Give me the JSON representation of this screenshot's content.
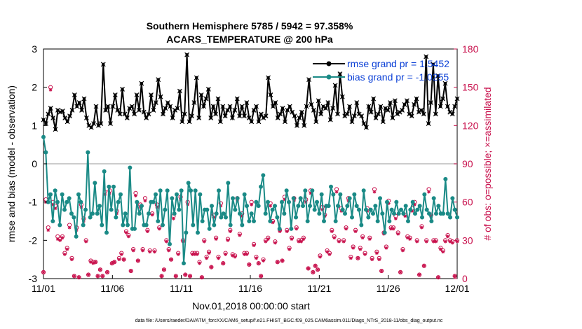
{
  "chart_data": {
    "type": "line",
    "title_line1": "Southern Hemisphere 5785 / 5942 = 97.358%",
    "title_line2": "ACARS_TEMPERATURE @ 200 hPa",
    "xlabel": "Nov.01,2018 00:00:00 start",
    "ylabel_left": "rmse and bias (model - observation)",
    "ylabel_right": "# of obs: o=possible; ×=assimilated",
    "footnote": "data file: /Users/raeder/DAI/ATM_forcXX/CAM6_setup/f.e21.FHIST_BGC.f09_025.CAM6assim.011/Diags_NTrS_2018-11/obs_diag_output.nc",
    "x_range": [
      0,
      30
    ],
    "x_ticks": [
      0,
      5,
      10,
      15,
      20,
      25,
      30
    ],
    "x_tick_labels": [
      "11/01",
      "11/06",
      "11/11",
      "11/16",
      "11/21",
      "11/26",
      "12/01"
    ],
    "y_left_range": [
      -3,
      3
    ],
    "y_left_ticks": [
      "-3",
      "-2",
      "-1",
      "0",
      "1",
      "2",
      "3"
    ],
    "y_right_range": [
      0,
      180
    ],
    "y_right_ticks": [
      "0",
      "30",
      "60",
      "90",
      "120",
      "150",
      "180"
    ],
    "zero_line": 0,
    "colors": {
      "rmse": "#000000",
      "bias": "#1a8a86",
      "obs": "#c8104c",
      "zero_line": "#bbbbbb",
      "legend_text": "#0a3fd6"
    },
    "legend": [
      {
        "label": "rmse grand pr = 1.5452",
        "series": "rmse"
      },
      {
        "label": "bias grand pr = -1.0255",
        "series": "bias"
      }
    ],
    "series": [
      {
        "name": "rmse",
        "values": [
          1.15,
          1.05,
          1.3,
          1.45,
          1.2,
          0.9,
          1.4,
          1.35,
          1.38,
          1.2,
          1.1,
          1.25,
          1.4,
          1.8,
          1.5,
          1.6,
          1.4,
          1.7,
          1.2,
          1.0,
          0.95,
          1.05,
          1.5,
          1.0,
          1.05,
          2.6,
          1.4,
          1.5,
          1.05,
          1.5,
          1.8,
          1.4,
          1.3,
          1.95,
          1.3,
          1.2,
          1.45,
          1.5,
          1.3,
          1.8,
          1.4,
          2.1,
          1.35,
          1.2,
          1.3,
          1.8,
          1.4,
          1.6,
          2.2,
          1.75,
          1.3,
          1.45,
          1.6,
          1.5,
          1.2,
          1.4,
          1.45,
          1.9,
          1.1,
          1.3,
          2.85,
          1.1,
          1.25,
          1.6,
          2.25,
          1.2,
          1.8,
          1.5,
          1.7,
          1.95,
          1.2,
          1.5,
          1.3,
          1.7,
          1.1,
          1.5,
          1.25,
          1.4,
          1.5,
          1.2,
          1.4,
          1.7,
          1.25,
          1.5,
          1.25,
          1.6,
          1.2,
          1.1,
          1.4,
          1.5,
          1.1,
          1.3,
          1.2,
          1.25,
          2.25,
          1.8,
          1.5,
          1.6,
          1.2,
          1.3,
          1.45,
          1.1,
          1.4,
          1.5,
          1.35,
          1.25,
          1.0,
          1.2,
          1.35,
          1.0,
          1.5,
          2.2,
          1.55,
          1.4,
          1.1,
          1.65,
          1.3,
          1.5,
          1.45,
          1.6,
          1.15,
          1.45,
          2.05,
          1.3,
          2.35,
          1.75,
          1.25,
          1.3,
          1.5,
          1.1,
          1.25,
          1.6,
          1.3,
          1.25,
          1.05,
          0.95,
          1.5,
          1.35,
          1.7,
          1.2,
          1.3,
          1.5,
          1.1,
          1.45,
          1.4,
          1.6,
          1.2,
          1.65,
          1.3,
          1.35,
          1.4,
          1.55,
          1.65,
          1.3,
          1.25,
          1.55,
          1.7,
          1.35,
          1.4,
          1.3,
          2.8,
          1.05,
          1.6,
          2.6,
          1.3,
          2.3,
          1.5,
          1.7,
          2.1,
          1.5,
          1.35,
          1.3,
          1.5,
          1.7
        ]
      },
      {
        "name": "bias",
        "values": [
          0.7,
          0.3,
          -1.0,
          -0.8,
          -1.5,
          -0.7,
          -1.0,
          -1.6,
          -0.8,
          -1.2,
          -1.0,
          -0.9,
          -1.3,
          -1.4,
          -1.9,
          -0.8,
          -1.0,
          -1.6,
          -1.2,
          0.3,
          -1.4,
          -1.3,
          -0.5,
          -1.3,
          -1.1,
          -1.6,
          -0.2,
          -1.8,
          -0.6,
          -1.2,
          -0.6,
          -1.4,
          -1.0,
          -0.8,
          -1.6,
          -1.3,
          -1.6,
          -0.1,
          -1.7,
          -1.7,
          -1.0,
          -1.3,
          -1.1,
          -1.6,
          -1.6,
          -1.3,
          -1.0,
          -1.0,
          -0.8,
          -1.5,
          -0.7,
          -1.6,
          -1.2,
          -0.7,
          -2.1,
          -0.9,
          -1.3,
          -0.8,
          -1.2,
          -0.7,
          -2.6,
          -1.8,
          -0.5,
          -0.7,
          -1.6,
          -0.7,
          -1.8,
          -0.8,
          -1.5,
          -1.2,
          -1.2,
          -1.7,
          -1.1,
          -1.6,
          -1.3,
          -0.7,
          -1.4,
          -1.3,
          -1.4,
          -0.5,
          -1.6,
          -0.9,
          -1.2,
          -0.9,
          -1.3,
          -1.6,
          -0.8,
          -1.1,
          -1.5,
          -1.3,
          -1.5,
          -1.0,
          -1.1,
          -0.6,
          -0.3,
          -1.3,
          -1.0,
          -1.5,
          -1.2,
          -1.1,
          -1.4,
          -1.7,
          -1.0,
          -1.3,
          -0.7,
          -1.0,
          -1.7,
          -0.9,
          -1.4,
          -1.1,
          -0.9,
          -1.1,
          -0.7,
          -1.5,
          -1.1,
          -0.7,
          -1.2,
          -1.0,
          -1.3,
          -0.8,
          -1.5,
          -1.1,
          -1.1,
          -0.6,
          -0.8,
          -1.5,
          -1.1,
          -0.8,
          -1.2,
          -1.3,
          -1.1,
          -0.9,
          -1.4,
          -0.8,
          -1.1,
          -1.2,
          -1.6,
          -0.7,
          -1.2,
          -1.4,
          -1.2,
          -1.3,
          -1.1,
          -1.5,
          -0.9,
          -1.3,
          -1.8,
          -1.0,
          -1.5,
          -1.2,
          -1.3,
          -1.0,
          -1.3,
          -1.2,
          -1.3,
          -1.1,
          -1.5,
          -1.2,
          -1.0,
          -1.3,
          -1.2,
          -1.1,
          -1.4,
          -0.8,
          -1.2,
          -1.3,
          -1.5,
          -0.9,
          -1.3,
          -1.1,
          -1.3,
          -1.3,
          -0.4,
          -1.3,
          -1.4,
          -0.9,
          -1.2,
          -1.4
        ]
      },
      {
        "name": "obs_possible",
        "values": [
          5,
          62,
          40,
          150,
          60,
          57,
          33,
          31,
          33,
          20,
          24,
          42,
          16,
          2,
          40,
          1,
          58,
          47,
          30,
          3,
          14,
          13,
          13,
          2,
          7,
          2,
          68,
          5,
          69,
          12,
          13,
          53,
          16,
          20,
          15,
          37,
          34,
          6,
          23,
          67,
          14,
          58,
          23,
          63,
          38,
          22,
          51,
          22,
          58,
          40,
          2,
          7,
          30,
          23,
          15,
          49,
          2,
          20,
          64,
          30,
          3,
          60,
          2,
          20,
          20,
          20,
          13,
          1,
          30,
          17,
          21,
          9,
          50,
          32,
          17,
          59,
          12,
          20,
          31,
          38,
          19,
          18,
          63,
          35,
          51,
          20,
          20,
          11,
          60,
          27,
          17,
          12,
          2,
          15,
          30,
          32,
          59,
          45,
          29,
          13,
          38,
          14,
          64,
          38,
          24,
          32,
          63,
          40,
          30,
          30,
          32,
          62,
          8,
          69,
          5,
          10,
          7,
          18,
          56,
          50,
          22,
          20,
          38,
          33,
          70,
          30,
          55,
          30,
          40,
          63,
          17,
          25,
          38,
          16,
          24,
          33,
          20,
          55,
          32,
          16,
          70,
          21,
          16,
          6,
          36,
          25,
          61,
          40,
          40,
          49,
          36,
          5,
          23,
          50,
          33,
          32,
          55,
          60,
          30,
          3,
          41,
          10,
          30,
          70,
          50,
          30,
          30,
          1,
          24,
          22,
          30,
          34,
          30,
          29,
          2,
          30
        ]
      },
      {
        "name": "obs_assimilated",
        "values": [
          5,
          60,
          38,
          148,
          58,
          55,
          31,
          30,
          32,
          19,
          23,
          40,
          15,
          2,
          38,
          1,
          56,
          45,
          29,
          3,
          13,
          12,
          13,
          2,
          7,
          2,
          66,
          5,
          67,
          12,
          13,
          51,
          15,
          19,
          15,
          36,
          33,
          6,
          22,
          65,
          14,
          56,
          22,
          61,
          37,
          21,
          50,
          21,
          56,
          39,
          2,
          7,
          29,
          22,
          15,
          47,
          2,
          19,
          62,
          29,
          3,
          58,
          2,
          19,
          19,
          19,
          12,
          1,
          29,
          16,
          20,
          9,
          48,
          31,
          16,
          57,
          12,
          19,
          30,
          37,
          18,
          17,
          61,
          34,
          49,
          19,
          19,
          11,
          58,
          26,
          16,
          12,
          2,
          14,
          29,
          31,
          57,
          44,
          28,
          13,
          37,
          14,
          62,
          37,
          23,
          31,
          61,
          39,
          29,
          29,
          31,
          60,
          8,
          67,
          5,
          10,
          7,
          17,
          54,
          49,
          21,
          19,
          37,
          32,
          68,
          29,
          53,
          29,
          39,
          61,
          16,
          24,
          37,
          16,
          23,
          32,
          19,
          53,
          31,
          15,
          68,
          20,
          15,
          6,
          35,
          24,
          59,
          39,
          39,
          47,
          35,
          5,
          22,
          49,
          32,
          31,
          53,
          58,
          29,
          3,
          40,
          10,
          29,
          68,
          49,
          29,
          29,
          1,
          23,
          21,
          29,
          33,
          29,
          28,
          2,
          29
        ]
      }
    ]
  }
}
